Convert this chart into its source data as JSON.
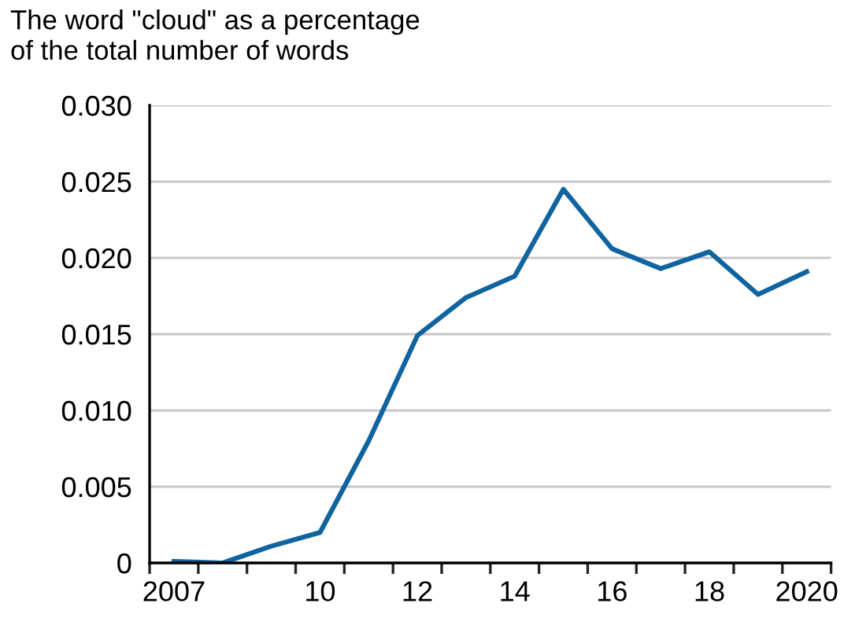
{
  "chart_data": {
    "type": "line",
    "title": "The word \"cloud\" as a percentage\nof the total number of words",
    "categories": [
      "2007",
      null,
      null,
      "10",
      null,
      "12",
      null,
      "14",
      null,
      "16",
      null,
      "18",
      null,
      "2020"
    ],
    "series": [
      {
        "color": "#0f64a0",
        "values": [
          0.0001,
          0.0,
          0.0011,
          0.002,
          0.008,
          0.0149,
          0.0174,
          0.0188,
          0.0245,
          0.0206,
          0.0193,
          0.0204,
          0.0176,
          0.0191
        ]
      }
    ],
    "ylim": [
      0,
      0.03
    ],
    "yticks": [
      {
        "value": 0,
        "label": "0"
      },
      {
        "value": 0.005,
        "label": "0.005"
      },
      {
        "value": 0.01,
        "label": "0.010"
      },
      {
        "value": 0.015,
        "label": "0.015"
      },
      {
        "value": 0.02,
        "label": "0.020"
      },
      {
        "value": 0.025,
        "label": "0.025"
      },
      {
        "value": 0.03,
        "label": "0.030"
      }
    ],
    "grid": "y",
    "marker": "none",
    "line_style": "solid"
  }
}
